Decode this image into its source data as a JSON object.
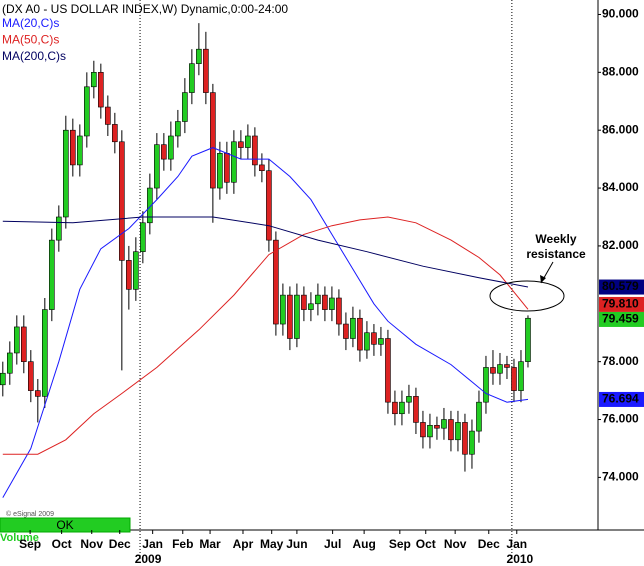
{
  "chart_data": {
    "type": "candlestick",
    "title": "(DX A0 - US DOLLAR INDEX,W) Dynamic,0:00-24:00",
    "open": [
      77.2,
      77.6,
      78.3,
      79.2,
      78.0,
      77.0,
      76.8,
      79.8,
      82.2,
      83.0,
      86.0,
      84.8,
      85.8,
      87.5,
      88.0,
      86.8,
      86.2,
      85.6,
      81.5,
      80.5,
      81.8,
      82.8,
      84.0,
      85.5,
      85.0,
      85.8,
      86.3,
      87.3,
      88.3,
      88.8,
      87.3,
      84.0,
      85.2,
      84.2,
      85.6,
      85.4,
      85.8,
      84.8,
      84.6,
      82.2,
      79.3,
      80.3,
      78.8,
      80.3,
      79.8,
      80.0,
      80.3,
      79.8,
      80.2,
      79.3,
      78.8,
      79.5,
      78.4,
      79.0,
      78.6,
      78.8,
      76.6,
      76.2,
      76.6,
      76.8,
      75.9,
      75.4,
      75.8,
      75.7,
      76.0,
      75.3,
      75.9,
      74.8,
      75.6,
      76.6,
      77.8,
      77.6,
      77.9,
      77.8,
      77.0,
      78.0
    ],
    "high": [
      78.0,
      78.7,
      79.6,
      79.6,
      78.4,
      77.4,
      80.2,
      82.6,
      83.4,
      86.5,
      86.4,
      86.2,
      88.0,
      88.4,
      88.3,
      87.2,
      86.6,
      86.0,
      82.0,
      82.3,
      83.2,
      84.5,
      85.9,
      85.9,
      86.3,
      86.7,
      87.8,
      88.8,
      89.7,
      89.4,
      87.6,
      85.6,
      85.6,
      86.0,
      86.0,
      86.2,
      86.1,
      85.2,
      85.0,
      82.5,
      80.7,
      80.6,
      80.7,
      80.6,
      80.4,
      80.7,
      80.6,
      80.6,
      80.5,
      79.7,
      79.9,
      79.8,
      79.4,
      79.3,
      79.2,
      79.1,
      77.0,
      77.0,
      77.2,
      77.1,
      76.3,
      76.2,
      76.1,
      76.4,
      76.3,
      76.3,
      76.2,
      76.0,
      77.0,
      78.2,
      78.4,
      78.3,
      78.2,
      78.1,
      78.4,
      79.6
    ],
    "low": [
      76.8,
      77.2,
      77.9,
      77.6,
      76.6,
      75.9,
      76.4,
      79.4,
      81.8,
      82.6,
      84.4,
      84.4,
      85.4,
      87.1,
      86.4,
      85.8,
      85.2,
      77.7,
      79.8,
      80.1,
      81.4,
      82.4,
      83.6,
      84.6,
      84.6,
      85.4,
      85.9,
      86.9,
      87.9,
      86.9,
      82.8,
      83.6,
      83.8,
      83.8,
      85.0,
      85.0,
      84.4,
      84.2,
      81.8,
      78.9,
      78.9,
      78.4,
      78.5,
      79.4,
      79.4,
      79.6,
      79.4,
      79.4,
      78.9,
      78.4,
      78.5,
      78.0,
      78.1,
      78.2,
      78.2,
      76.2,
      75.8,
      75.8,
      76.2,
      75.5,
      75.0,
      75.0,
      75.3,
      75.3,
      74.9,
      74.9,
      74.2,
      74.3,
      75.2,
      76.2,
      77.2,
      77.2,
      77.4,
      76.6,
      76.6,
      77.8
    ],
    "close": [
      77.6,
      78.3,
      79.2,
      78.0,
      77.0,
      76.8,
      79.8,
      82.2,
      83.0,
      86.0,
      84.8,
      85.8,
      87.5,
      88.0,
      86.8,
      86.2,
      85.6,
      81.5,
      80.5,
      81.8,
      82.8,
      84.0,
      85.5,
      85.0,
      85.8,
      86.3,
      87.3,
      88.3,
      88.8,
      87.3,
      84.0,
      85.2,
      84.2,
      85.6,
      85.4,
      85.8,
      84.8,
      84.6,
      82.2,
      79.3,
      80.3,
      78.8,
      80.3,
      79.8,
      80.0,
      80.3,
      79.8,
      80.2,
      79.3,
      78.8,
      79.5,
      78.4,
      79.0,
      78.6,
      78.8,
      76.6,
      76.2,
      76.6,
      76.8,
      75.9,
      75.4,
      75.8,
      75.7,
      76.0,
      75.3,
      75.9,
      74.8,
      75.6,
      76.6,
      77.8,
      77.6,
      77.9,
      77.8,
      77.0,
      78.0,
      79.5
    ],
    "up_color": "#22cc22",
    "down_color": "#dd2222",
    "series": [
      {
        "name": "MA(20,C)s",
        "color": "#1a1aff",
        "x": [
          0,
          4,
          8,
          11,
          14,
          18,
          22,
          25,
          27,
          30,
          34,
          38,
          41,
          44,
          47,
          50,
          53,
          55,
          59,
          64,
          67,
          69,
          72,
          75
        ],
        "values": [
          73.3,
          75.0,
          78.0,
          80.5,
          81.9,
          82.6,
          83.6,
          84.4,
          85.1,
          85.4,
          85.0,
          85.0,
          84.4,
          83.6,
          82.4,
          81.2,
          80.0,
          79.4,
          78.6,
          77.9,
          77.3,
          76.9,
          76.6,
          76.694
        ]
      },
      {
        "name": "MA(50,C)s",
        "color": "#dd2222",
        "x": [
          0,
          5,
          9,
          13,
          17,
          22,
          28,
          33,
          38,
          43,
          47,
          51,
          55,
          59,
          64,
          68,
          71,
          75
        ],
        "values": [
          74.8,
          74.8,
          75.3,
          76.2,
          76.9,
          77.8,
          79.1,
          80.3,
          81.7,
          82.4,
          82.7,
          82.9,
          83.0,
          82.8,
          82.2,
          81.6,
          81.0,
          79.81
        ]
      },
      {
        "name": "MA(200,C)s",
        "color": "#000060",
        "x": [
          0,
          10,
          20,
          30,
          38,
          45,
          52,
          60,
          68,
          75
        ],
        "values": [
          82.85,
          82.8,
          83.0,
          83.0,
          82.7,
          82.2,
          81.8,
          81.3,
          80.9,
          80.579
        ]
      }
    ],
    "xlim": [
      -0.4,
      85
    ],
    "ylim": [
      72.7,
      90.5
    ],
    "yticks": [
      {
        "value": 74,
        "label": "74.000"
      },
      {
        "value": 76,
        "label": "76.000"
      },
      {
        "value": 78,
        "label": "78.000"
      },
      {
        "value": 82,
        "label": "82.000"
      },
      {
        "value": 84,
        "label": "84.000"
      },
      {
        "value": 86,
        "label": "86.000"
      },
      {
        "value": 88,
        "label": "88.000"
      },
      {
        "value": 90,
        "label": "90.000"
      }
    ],
    "xticks": [
      {
        "value": 3.9,
        "label": "Sep"
      },
      {
        "value": 8.4,
        "label": "Oct"
      },
      {
        "value": 12.7,
        "label": "Nov"
      },
      {
        "value": 16.7,
        "label": "Dec"
      },
      {
        "value": 21.4,
        "label": "Jan"
      },
      {
        "value": 25.7,
        "label": "Feb"
      },
      {
        "value": 29.6,
        "label": "Mar"
      },
      {
        "value": 34.3,
        "label": "Apr"
      },
      {
        "value": 38.4,
        "label": "May"
      },
      {
        "value": 42,
        "label": "Jun"
      },
      {
        "value": 47.1,
        "label": "Jul"
      },
      {
        "value": 51.6,
        "label": "Aug"
      },
      {
        "value": 56.7,
        "label": "Sep"
      },
      {
        "value": 60.4,
        "label": "Oct"
      },
      {
        "value": 64.6,
        "label": "Nov"
      },
      {
        "value": 69.4,
        "label": "Dec"
      },
      {
        "value": 73.4,
        "label": "Jan"
      }
    ],
    "years": [
      {
        "value": 19.6,
        "label": "2009"
      },
      {
        "value": 72.7,
        "label": "2010"
      }
    ],
    "price_labels": {
      "values": [
        80.579,
        79.81,
        79.459,
        76.694
      ],
      "value_labels": [
        "80.579",
        "79.810",
        "79.459",
        "76.694"
      ],
      "colors": [
        "#000080",
        "#dd2222",
        "#22cc22",
        "#1a1aff"
      ]
    },
    "annotation": [
      "Weekly",
      "resistance"
    ],
    "button": "OK",
    "volume_label": "Volume",
    "copyright": "© eSignal 2009"
  }
}
